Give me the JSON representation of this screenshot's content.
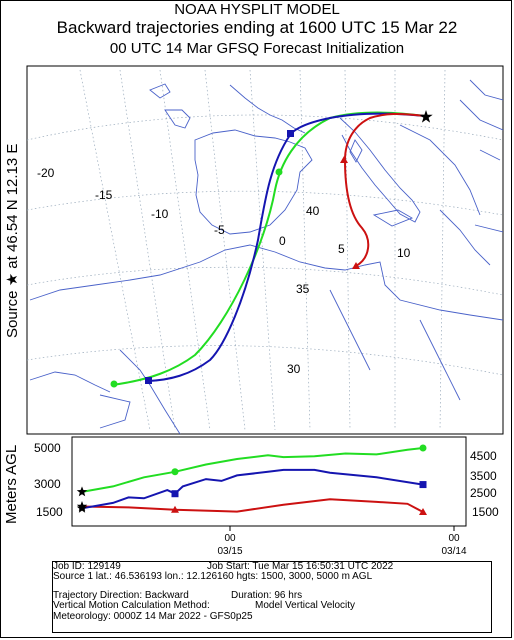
{
  "titles": {
    "line1": "NOAA HYSPLIT MODEL",
    "line2": "Backward trajectories ending at 1600 UTC 15 Mar 22",
    "line3": "00 UTC 14 Mar   GFSQ  Forecast Initialization"
  },
  "map": {
    "side_label": "Source ★ at   46.54 N   12.13 E",
    "lon_labels": [
      "-20",
      "-15",
      "-10",
      "-5",
      "0",
      "5",
      "10",
      "40",
      "35",
      "30"
    ],
    "source_marker": "star-icon"
  },
  "profile": {
    "ylabel": "Meters AGL",
    "left_ticks": [
      "5000",
      "3000",
      "1500"
    ],
    "right_ticks": [
      "4500",
      "3500",
      "2500",
      "1500"
    ],
    "time_labels": [
      {
        "hour": "00",
        "date": "03/15"
      },
      {
        "hour": "00",
        "date": "03/14"
      }
    ]
  },
  "info": {
    "job_id": "Job ID: 129149",
    "job_start": "Job Start: Tue Mar 15 16:50:31 UTC 2022",
    "source": "Source 1 lat.: 46.536193  lon.: 12.126160  hgts: 1500, 3000, 5000 m AGL",
    "direction": "Trajectory Direction: Backward",
    "duration": "Duration: 96 hrs",
    "vertical_method": "Vertical Motion Calculation Method:",
    "vertical_value": "Model Vertical Velocity",
    "meteorology": "Meteorology: 0000Z 14 Mar 2022 - GFS0p25"
  },
  "chart_data": {
    "type": "line",
    "x_unit": "hours before 1600 UTC 15 Mar 22",
    "x_direction": "backward",
    "x_range": [
      0,
      96
    ],
    "y_label": "Meters AGL",
    "colors": {
      "1500 m": "#cc1111",
      "3000 m": "#1515b0",
      "5000 m": "#22dd22"
    },
    "series": [
      {
        "name": "1500 m",
        "color": "#cc1111",
        "x": [
          0,
          12,
          24,
          36,
          40,
          52,
          64,
          76,
          84,
          88
        ],
        "height_m": [
          1800,
          1750,
          1620,
          1550,
          1520,
          1900,
          2200,
          2050,
          1950,
          1500
        ]
      },
      {
        "name": "3000 m",
        "color": "#1515b0",
        "x": [
          0,
          8,
          12,
          16,
          22,
          24,
          26,
          32,
          36,
          40,
          48,
          52,
          60,
          64,
          76,
          88
        ],
        "height_m": [
          1700,
          2000,
          2300,
          2250,
          2700,
          2500,
          2900,
          3300,
          3200,
          3500,
          3700,
          3800,
          3800,
          3650,
          3400,
          3000
        ]
      },
      {
        "name": "5000 m",
        "color": "#22dd22",
        "x": [
          0,
          8,
          16,
          24,
          32,
          40,
          48,
          52,
          60,
          68,
          76,
          84,
          88
        ],
        "height_m": [
          2600,
          2900,
          3400,
          3700,
          4100,
          4400,
          4600,
          4500,
          4550,
          4700,
          4650,
          4900,
          5000
        ]
      }
    ]
  }
}
